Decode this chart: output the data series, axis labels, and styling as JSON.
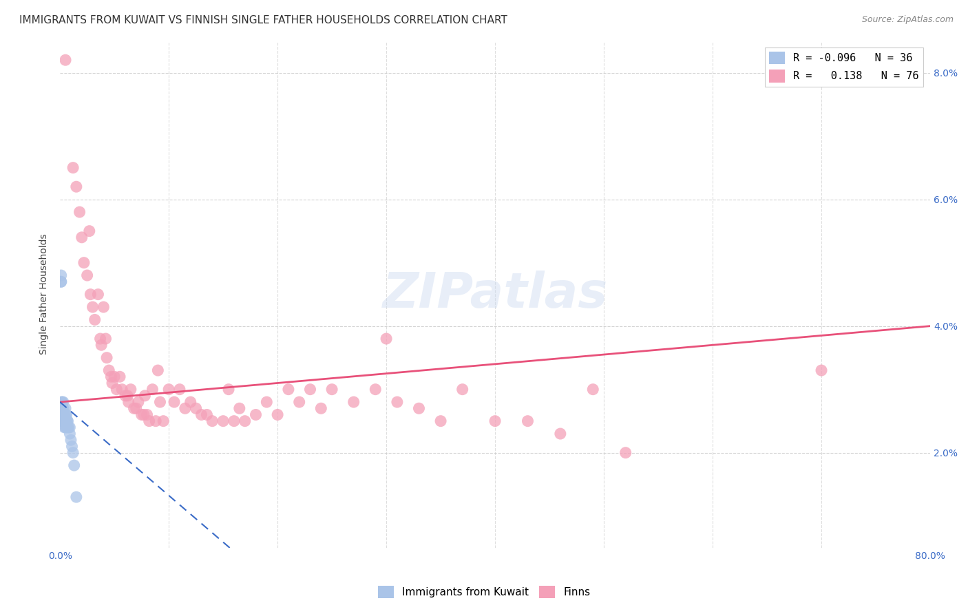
{
  "title": "IMMIGRANTS FROM KUWAIT VS FINNISH SINGLE FATHER HOUSEHOLDS CORRELATION CHART",
  "source": "Source: ZipAtlas.com",
  "ylabel": "Single Father Households",
  "xlim": [
    0.0,
    0.8
  ],
  "ylim": [
    0.005,
    0.085
  ],
  "legend_blue_R": "-0.096",
  "legend_blue_N": "36",
  "legend_pink_R": "0.138",
  "legend_pink_N": "76",
  "legend_blue_label": "Immigrants from Kuwait",
  "legend_pink_label": "Finns",
  "title_fontsize": 11,
  "source_fontsize": 9,
  "blue_color": "#aac4e8",
  "blue_line_color": "#3a6bc7",
  "pink_color": "#f4a0b8",
  "pink_line_color": "#e8517a",
  "background_color": "#ffffff",
  "grid_color": "#c8c8c8",
  "blue_scatter_x": [
    0.001,
    0.001,
    0.001,
    0.0015,
    0.0015,
    0.002,
    0.002,
    0.002,
    0.002,
    0.003,
    0.003,
    0.003,
    0.003,
    0.003,
    0.004,
    0.004,
    0.004,
    0.004,
    0.005,
    0.005,
    0.005,
    0.005,
    0.006,
    0.006,
    0.006,
    0.007,
    0.007,
    0.007,
    0.008,
    0.009,
    0.009,
    0.01,
    0.011,
    0.012,
    0.013,
    0.015
  ],
  "blue_scatter_y": [
    0.047,
    0.047,
    0.048,
    0.028,
    0.026,
    0.025,
    0.026,
    0.027,
    0.028,
    0.025,
    0.025,
    0.026,
    0.027,
    0.028,
    0.024,
    0.025,
    0.025,
    0.026,
    0.024,
    0.025,
    0.026,
    0.027,
    0.024,
    0.025,
    0.026,
    0.024,
    0.025,
    0.025,
    0.024,
    0.023,
    0.024,
    0.022,
    0.021,
    0.02,
    0.018,
    0.013
  ],
  "pink_scatter_x": [
    0.005,
    0.012,
    0.015,
    0.018,
    0.02,
    0.022,
    0.025,
    0.027,
    0.028,
    0.03,
    0.032,
    0.035,
    0.037,
    0.038,
    0.04,
    0.042,
    0.043,
    0.045,
    0.047,
    0.048,
    0.05,
    0.052,
    0.055,
    0.057,
    0.06,
    0.062,
    0.063,
    0.065,
    0.068,
    0.07,
    0.072,
    0.075,
    0.077,
    0.078,
    0.08,
    0.082,
    0.085,
    0.088,
    0.09,
    0.092,
    0.095,
    0.1,
    0.105,
    0.11,
    0.115,
    0.12,
    0.125,
    0.13,
    0.135,
    0.14,
    0.15,
    0.155,
    0.16,
    0.165,
    0.17,
    0.18,
    0.19,
    0.2,
    0.21,
    0.22,
    0.23,
    0.24,
    0.25,
    0.27,
    0.29,
    0.31,
    0.33,
    0.35,
    0.37,
    0.4,
    0.43,
    0.46,
    0.49,
    0.52,
    0.7,
    0.3
  ],
  "pink_scatter_y": [
    0.082,
    0.065,
    0.062,
    0.058,
    0.054,
    0.05,
    0.048,
    0.055,
    0.045,
    0.043,
    0.041,
    0.045,
    0.038,
    0.037,
    0.043,
    0.038,
    0.035,
    0.033,
    0.032,
    0.031,
    0.032,
    0.03,
    0.032,
    0.03,
    0.029,
    0.029,
    0.028,
    0.03,
    0.027,
    0.027,
    0.028,
    0.026,
    0.026,
    0.029,
    0.026,
    0.025,
    0.03,
    0.025,
    0.033,
    0.028,
    0.025,
    0.03,
    0.028,
    0.03,
    0.027,
    0.028,
    0.027,
    0.026,
    0.026,
    0.025,
    0.025,
    0.03,
    0.025,
    0.027,
    0.025,
    0.026,
    0.028,
    0.026,
    0.03,
    0.028,
    0.03,
    0.027,
    0.03,
    0.028,
    0.03,
    0.028,
    0.027,
    0.025,
    0.03,
    0.025,
    0.025,
    0.023,
    0.03,
    0.02,
    0.033,
    0.038
  ],
  "blue_line_x": [
    0.0,
    0.8
  ],
  "blue_line_y": [
    0.028,
    -0.09
  ],
  "pink_line_x": [
    0.0,
    0.8
  ],
  "pink_line_y": [
    0.028,
    0.04
  ],
  "ytick_vals": [
    0.02,
    0.04,
    0.06,
    0.08
  ],
  "ytick_labels": [
    "2.0%",
    "4.0%",
    "6.0%",
    "8.0%"
  ]
}
